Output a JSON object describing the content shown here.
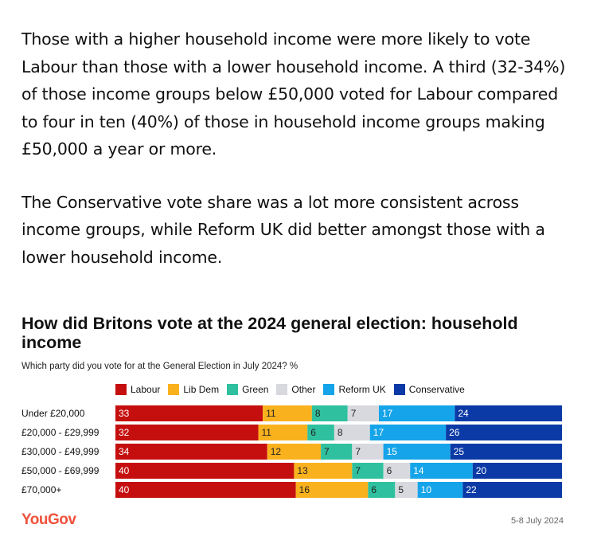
{
  "article": {
    "paragraphs": [
      "Those with a higher household income were more likely to vote Labour than those with a lower household income. A third (32-34%) of those income groups below £50,000 voted for Labour compared to four in ten (40%) of those in household income groups making £50,000 a year or more.",
      "The Conservative vote share was a lot more consistent across income groups, while Reform UK did better amongst those with a lower household income."
    ]
  },
  "footer": {
    "logo": "YouGov",
    "date": "5-8 July 2024"
  },
  "chart_data": {
    "type": "bar",
    "stacked": true,
    "orientation": "horizontal",
    "title": "How did Britons vote at the 2024 general election: household income",
    "subtitle": "Which party did you vote for at the General Election in July 2024? %",
    "legend_position": "top",
    "categories": [
      "Under £20,000",
      "£20,000 - £29,999",
      "£30,000 - £49,999",
      "£50,000 - £69,999",
      "£70,000+"
    ],
    "series": [
      {
        "name": "Labour",
        "color": "#c50f0f",
        "label_color": "#ffffff",
        "values": [
          33,
          32,
          34,
          40,
          40
        ]
      },
      {
        "name": "Lib Dem",
        "color": "#fab11e",
        "label_color": "#222222",
        "values": [
          11,
          11,
          12,
          13,
          16
        ]
      },
      {
        "name": "Green",
        "color": "#2fc19f",
        "label_color": "#222222",
        "values": [
          8,
          6,
          7,
          7,
          6
        ]
      },
      {
        "name": "Other",
        "color": "#d8d9de",
        "label_color": "#222222",
        "values": [
          7,
          8,
          7,
          6,
          5
        ]
      },
      {
        "name": "Reform UK",
        "color": "#15a4e9",
        "label_color": "#ffffff",
        "values": [
          17,
          17,
          15,
          14,
          10
        ]
      },
      {
        "name": "Conservative",
        "color": "#0b3aa6",
        "label_color": "#ffffff",
        "values": [
          24,
          26,
          25,
          20,
          22
        ]
      }
    ]
  }
}
